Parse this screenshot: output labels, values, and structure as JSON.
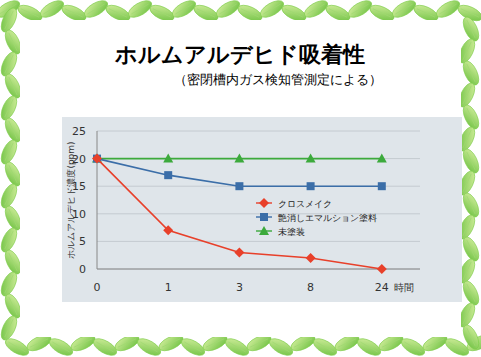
{
  "chart_data": {
    "type": "line",
    "title": "ホルムアルデヒド吸着性",
    "subtitle": "（密閉槽内ガス検知管測定による）",
    "x_label": "時間",
    "y_label": "ホルムアルデヒド濃度(ppm)",
    "categories": [
      "0",
      "1",
      "3",
      "8",
      "24"
    ],
    "series": [
      {
        "name": "クロスメイク",
        "color": "#e8402a",
        "marker": "diamond",
        "values": [
          20,
          7,
          3,
          2,
          0
        ]
      },
      {
        "name": "艶消しエマルション塗料",
        "color": "#3b6ea8",
        "marker": "square",
        "values": [
          20,
          17,
          15,
          15,
          15
        ]
      },
      {
        "name": "未塗装",
        "color": "#3caa3c",
        "marker": "triangle",
        "values": [
          20,
          20,
          20,
          20,
          20
        ]
      }
    ],
    "ylim": [
      0,
      25
    ],
    "yticks": [
      0,
      5,
      10,
      15,
      20,
      25
    ],
    "grid": true,
    "legend": "right"
  }
}
